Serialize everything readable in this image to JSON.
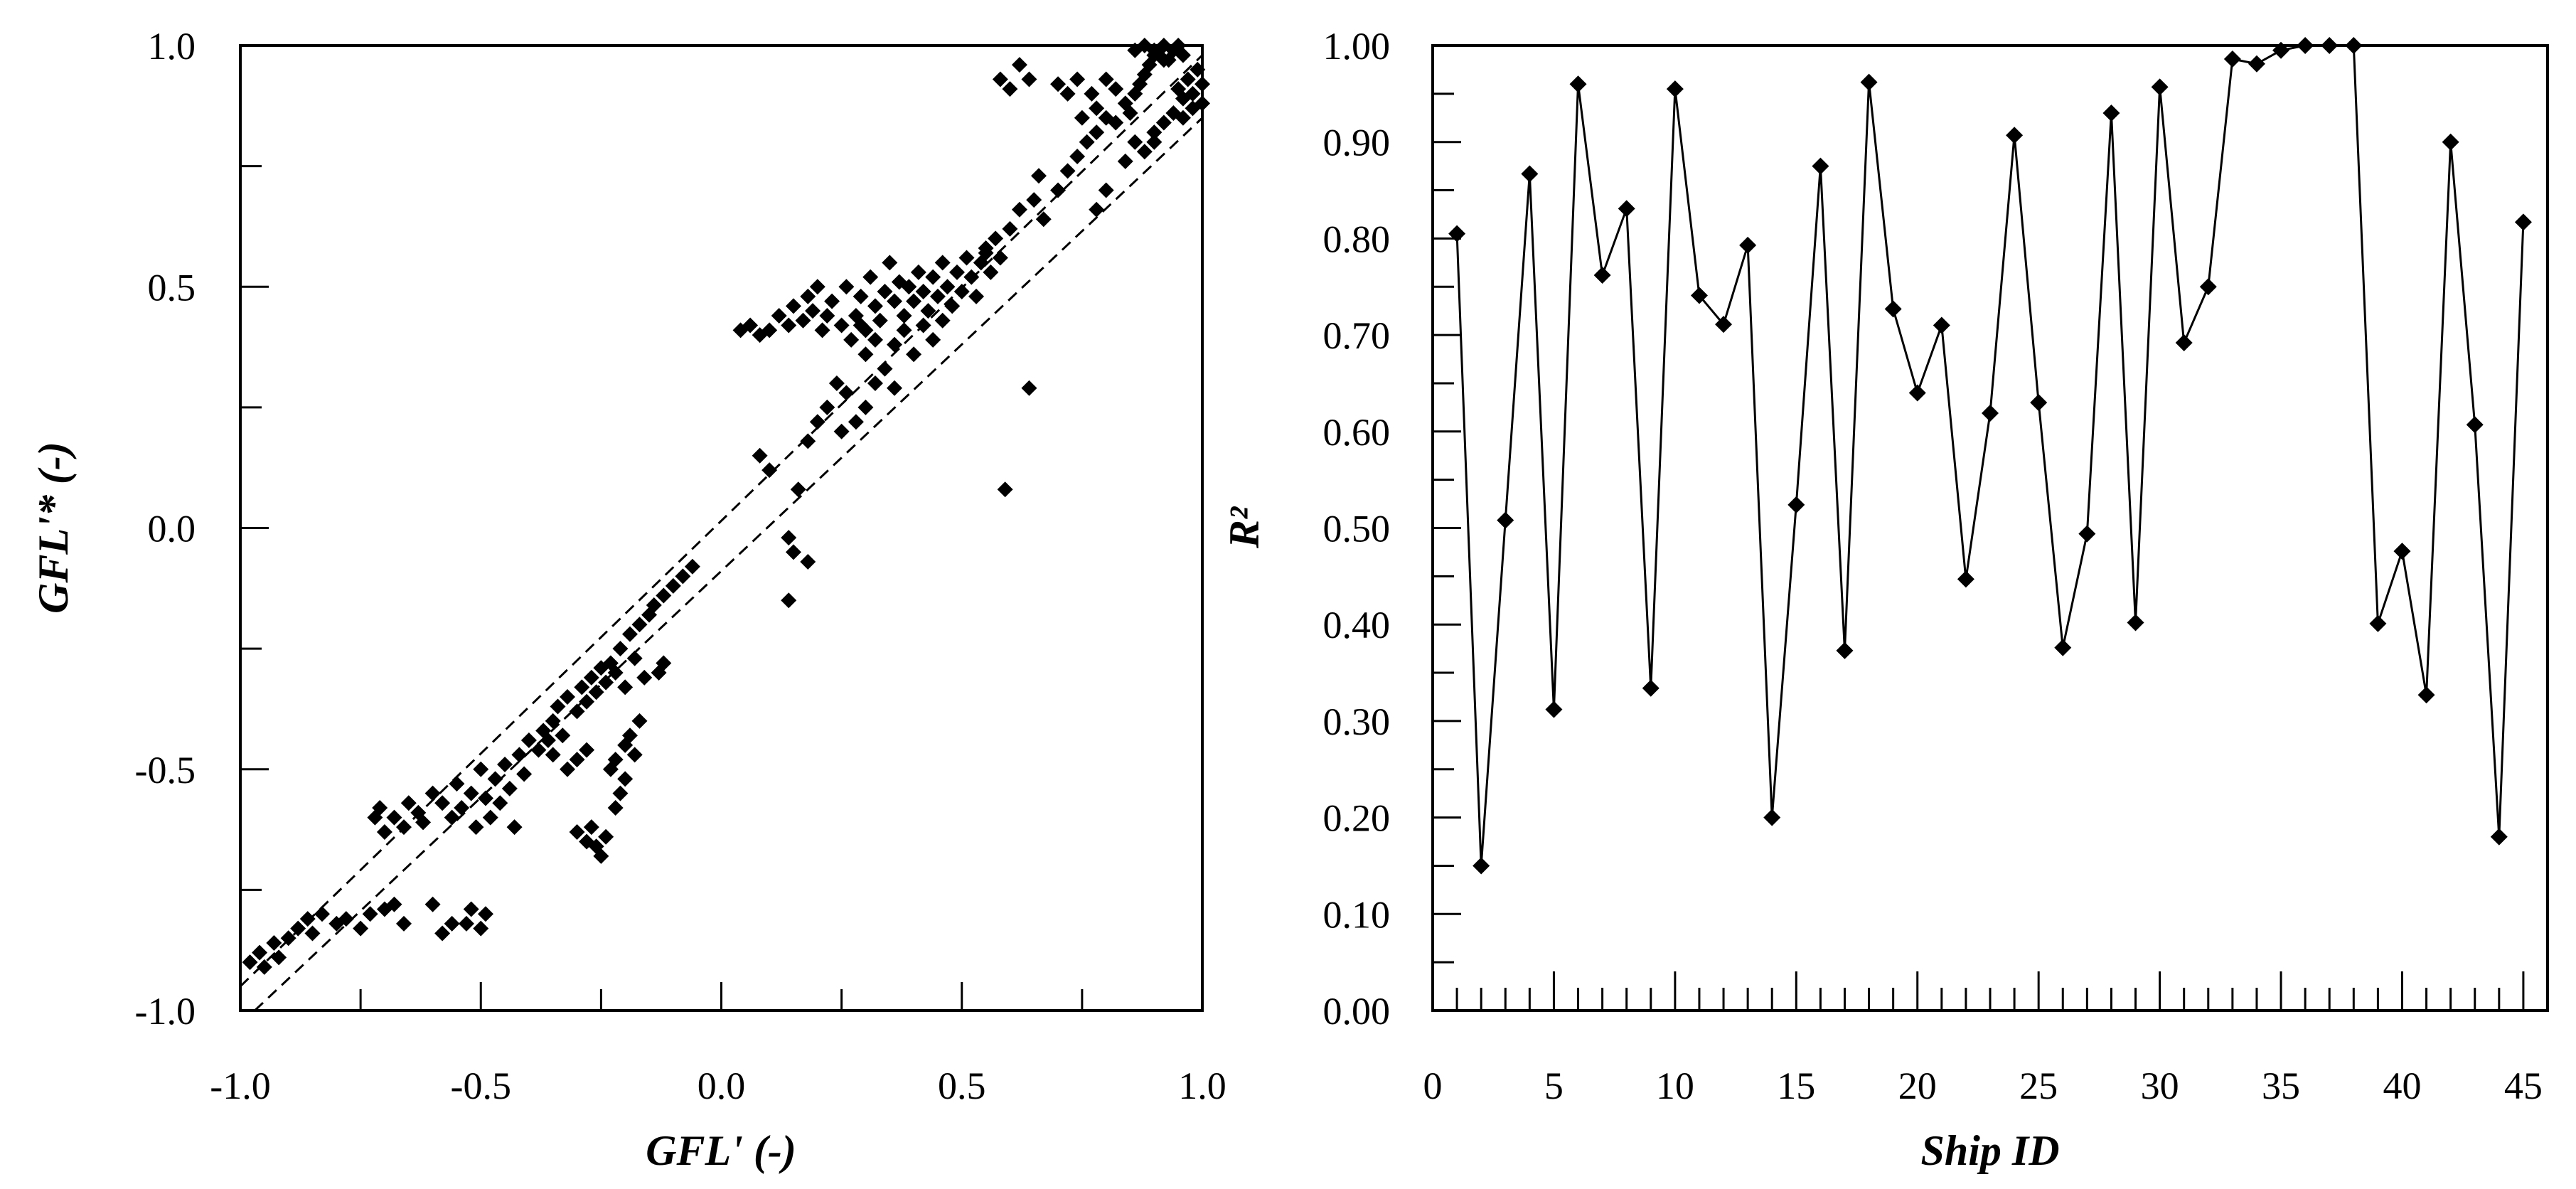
{
  "chart_data": [
    {
      "type": "scatter",
      "xlabel": "GFL' (-)",
      "ylabel": "GFL'* (-)",
      "xlim": [
        -1.0,
        1.0
      ],
      "ylim": [
        -1.0,
        1.0
      ],
      "xticks": [
        "-1.0",
        "-0.5",
        "0.0",
        "0.5",
        "1.0"
      ],
      "yticks": [
        "-1.0",
        "-0.5",
        "0.0",
        "0.5",
        "1.0"
      ],
      "grid": false,
      "marker": "diamond",
      "reference_lines": [
        {
          "style": "dashed",
          "x": [
            -1.0,
            1.0
          ],
          "y": [
            -0.95,
            0.98
          ]
        },
        {
          "style": "dashed",
          "x": [
            -0.97,
            1.0
          ],
          "y": [
            -1.0,
            0.85
          ]
        }
      ],
      "points": [
        [
          -0.98,
          -0.9
        ],
        [
          -0.96,
          -0.88
        ],
        [
          -0.95,
          -0.91
        ],
        [
          -0.93,
          -0.86
        ],
        [
          -0.92,
          -0.89
        ],
        [
          -0.9,
          -0.85
        ],
        [
          -0.88,
          -0.83
        ],
        [
          -0.86,
          -0.81
        ],
        [
          -0.85,
          -0.84
        ],
        [
          -0.83,
          -0.8
        ],
        [
          -0.8,
          -0.82
        ],
        [
          -0.78,
          -0.81
        ],
        [
          -0.75,
          -0.83
        ],
        [
          -0.73,
          -0.8
        ],
        [
          -0.7,
          -0.79
        ],
        [
          -0.68,
          -0.78
        ],
        [
          -0.66,
          -0.82
        ],
        [
          -0.6,
          -0.78
        ],
        [
          -0.58,
          -0.84
        ],
        [
          -0.56,
          -0.82
        ],
        [
          -0.52,
          -0.79
        ],
        [
          -0.5,
          -0.83
        ],
        [
          -0.49,
          -0.8
        ],
        [
          -0.53,
          -0.82
        ],
        [
          -0.72,
          -0.6
        ],
        [
          -0.7,
          -0.63
        ],
        [
          -0.71,
          -0.58
        ],
        [
          -0.68,
          -0.6
        ],
        [
          -0.66,
          -0.62
        ],
        [
          -0.65,
          -0.57
        ],
        [
          -0.63,
          -0.59
        ],
        [
          -0.62,
          -0.61
        ],
        [
          -0.6,
          -0.55
        ],
        [
          -0.58,
          -0.57
        ],
        [
          -0.56,
          -0.6
        ],
        [
          -0.55,
          -0.53
        ],
        [
          -0.54,
          -0.58
        ],
        [
          -0.52,
          -0.55
        ],
        [
          -0.51,
          -0.62
        ],
        [
          -0.5,
          -0.5
        ],
        [
          -0.49,
          -0.56
        ],
        [
          -0.48,
          -0.6
        ],
        [
          -0.47,
          -0.52
        ],
        [
          -0.46,
          -0.57
        ],
        [
          -0.45,
          -0.49
        ],
        [
          -0.44,
          -0.54
        ],
        [
          -0.43,
          -0.62
        ],
        [
          -0.42,
          -0.47
        ],
        [
          -0.41,
          -0.51
        ],
        [
          -0.4,
          -0.44
        ],
        [
          -0.38,
          -0.46
        ],
        [
          -0.37,
          -0.42
        ],
        [
          -0.35,
          -0.4
        ],
        [
          -0.34,
          -0.37
        ],
        [
          -0.33,
          -0.43
        ],
        [
          -0.32,
          -0.35
        ],
        [
          -0.3,
          -0.38
        ],
        [
          -0.29,
          -0.33
        ],
        [
          -0.28,
          -0.36
        ],
        [
          -0.27,
          -0.31
        ],
        [
          -0.26,
          -0.34
        ],
        [
          -0.25,
          -0.29
        ],
        [
          -0.24,
          -0.32
        ],
        [
          -0.23,
          -0.28
        ],
        [
          -0.22,
          -0.3
        ],
        [
          -0.21,
          -0.25
        ],
        [
          -0.2,
          -0.33
        ],
        [
          -0.19,
          -0.22
        ],
        [
          -0.18,
          -0.27
        ],
        [
          -0.17,
          -0.2
        ],
        [
          -0.16,
          -0.31
        ],
        [
          -0.15,
          -0.18
        ],
        [
          -0.14,
          -0.16
        ],
        [
          -0.12,
          -0.14
        ],
        [
          -0.1,
          -0.12
        ],
        [
          -0.08,
          -0.1
        ],
        [
          -0.06,
          -0.08
        ],
        [
          -0.3,
          -0.63
        ],
        [
          -0.28,
          -0.65
        ],
        [
          -0.27,
          -0.62
        ],
        [
          -0.26,
          -0.66
        ],
        [
          -0.25,
          -0.68
        ],
        [
          -0.24,
          -0.64
        ],
        [
          -0.23,
          -0.5
        ],
        [
          -0.22,
          -0.48
        ],
        [
          -0.2,
          -0.45
        ],
        [
          -0.19,
          -0.43
        ],
        [
          -0.18,
          -0.47
        ],
        [
          -0.17,
          -0.4
        ],
        [
          -0.22,
          -0.58
        ],
        [
          -0.21,
          -0.55
        ],
        [
          -0.2,
          -0.52
        ],
        [
          -0.12,
          -0.28
        ],
        [
          -0.13,
          -0.3
        ],
        [
          -0.3,
          -0.48
        ],
        [
          -0.28,
          -0.46
        ],
        [
          -0.32,
          -0.5
        ],
        [
          -0.35,
          -0.47
        ],
        [
          -0.36,
          -0.44
        ],
        [
          0.08,
          0.15
        ],
        [
          0.1,
          0.12
        ],
        [
          0.14,
          -0.02
        ],
        [
          0.15,
          -0.05
        ],
        [
          0.18,
          -0.07
        ],
        [
          0.14,
          -0.15
        ],
        [
          0.16,
          0.08
        ],
        [
          0.18,
          0.18
        ],
        [
          0.2,
          0.22
        ],
        [
          0.22,
          0.25
        ],
        [
          0.24,
          0.3
        ],
        [
          0.26,
          0.28
        ],
        [
          0.25,
          0.2
        ],
        [
          0.28,
          0.22
        ],
        [
          0.3,
          0.25
        ],
        [
          0.32,
          0.3
        ],
        [
          0.34,
          0.33
        ],
        [
          0.36,
          0.29
        ],
        [
          0.04,
          0.41
        ],
        [
          0.06,
          0.42
        ],
        [
          0.08,
          0.4
        ],
        [
          0.1,
          0.41
        ],
        [
          0.12,
          0.44
        ],
        [
          0.14,
          0.42
        ],
        [
          0.15,
          0.46
        ],
        [
          0.17,
          0.43
        ],
        [
          0.18,
          0.48
        ],
        [
          0.19,
          0.45
        ],
        [
          0.2,
          0.5
        ],
        [
          0.21,
          0.41
        ],
        [
          0.22,
          0.44
        ],
        [
          0.23,
          0.47
        ],
        [
          0.25,
          0.42
        ],
        [
          0.26,
          0.5
        ],
        [
          0.27,
          0.39
        ],
        [
          0.28,
          0.44
        ],
        [
          0.29,
          0.48
        ],
        [
          0.3,
          0.41
        ],
        [
          0.31,
          0.52
        ],
        [
          0.32,
          0.46
        ],
        [
          0.33,
          0.43
        ],
        [
          0.34,
          0.49
        ],
        [
          0.35,
          0.55
        ],
        [
          0.36,
          0.47
        ],
        [
          0.37,
          0.51
        ],
        [
          0.38,
          0.44
        ],
        [
          0.39,
          0.5
        ],
        [
          0.4,
          0.47
        ],
        [
          0.41,
          0.53
        ],
        [
          0.42,
          0.49
        ],
        [
          0.43,
          0.45
        ],
        [
          0.44,
          0.52
        ],
        [
          0.45,
          0.48
        ],
        [
          0.46,
          0.55
        ],
        [
          0.47,
          0.5
        ],
        [
          0.48,
          0.46
        ],
        [
          0.49,
          0.53
        ],
        [
          0.5,
          0.49
        ],
        [
          0.51,
          0.56
        ],
        [
          0.52,
          0.52
        ],
        [
          0.53,
          0.48
        ],
        [
          0.54,
          0.55
        ],
        [
          0.55,
          0.57
        ],
        [
          0.56,
          0.53
        ],
        [
          0.57,
          0.6
        ],
        [
          0.58,
          0.56
        ],
        [
          0.36,
          0.38
        ],
        [
          0.38,
          0.41
        ],
        [
          0.4,
          0.36
        ],
        [
          0.42,
          0.42
        ],
        [
          0.44,
          0.39
        ],
        [
          0.46,
          0.43
        ],
        [
          0.3,
          0.36
        ],
        [
          0.32,
          0.39
        ],
        [
          0.29,
          0.42
        ],
        [
          0.64,
          0.29
        ],
        [
          0.59,
          0.08
        ],
        [
          0.55,
          0.58
        ],
        [
          0.6,
          0.62
        ],
        [
          0.62,
          0.66
        ],
        [
          0.65,
          0.68
        ],
        [
          0.67,
          0.64
        ],
        [
          0.66,
          0.73
        ],
        [
          0.7,
          0.7
        ],
        [
          0.72,
          0.74
        ],
        [
          0.74,
          0.77
        ],
        [
          0.76,
          0.8
        ],
        [
          0.78,
          0.82
        ],
        [
          0.8,
          0.85
        ],
        [
          0.82,
          0.84
        ],
        [
          0.84,
          0.88
        ],
        [
          0.85,
          0.86
        ],
        [
          0.86,
          0.9
        ],
        [
          0.87,
          0.92
        ],
        [
          0.88,
          0.94
        ],
        [
          0.89,
          0.96
        ],
        [
          0.9,
          0.98
        ],
        [
          0.91,
          0.99
        ],
        [
          0.92,
          1.0
        ],
        [
          0.93,
          0.97
        ],
        [
          0.94,
          0.99
        ],
        [
          0.95,
          1.0
        ],
        [
          0.96,
          0.98
        ],
        [
          0.86,
          0.99
        ],
        [
          0.88,
          1.0
        ],
        [
          0.9,
          0.99
        ],
        [
          0.92,
          0.97
        ],
        [
          0.58,
          0.93
        ],
        [
          0.6,
          0.91
        ],
        [
          0.62,
          0.96
        ],
        [
          0.64,
          0.93
        ],
        [
          0.7,
          0.92
        ],
        [
          0.72,
          0.9
        ],
        [
          0.74,
          0.93
        ],
        [
          0.77,
          0.9
        ],
        [
          0.8,
          0.93
        ],
        [
          0.82,
          0.91
        ],
        [
          0.75,
          0.85
        ],
        [
          0.78,
          0.87
        ],
        [
          0.95,
          0.91
        ],
        [
          0.96,
          0.89
        ],
        [
          0.97,
          0.93
        ],
        [
          0.98,
          0.9
        ],
        [
          0.99,
          0.95
        ],
        [
          1.0,
          0.92
        ],
        [
          0.9,
          0.82
        ],
        [
          0.92,
          0.84
        ],
        [
          0.94,
          0.86
        ],
        [
          0.96,
          0.85
        ],
        [
          0.98,
          0.87
        ],
        [
          1.0,
          0.88
        ],
        [
          0.88,
          0.78
        ],
        [
          0.86,
          0.8
        ],
        [
          0.84,
          0.76
        ],
        [
          0.9,
          0.8
        ],
        [
          0.8,
          0.7
        ],
        [
          0.78,
          0.66
        ]
      ]
    },
    {
      "type": "line",
      "xlabel": "Ship ID",
      "ylabel": "R²",
      "xlim": [
        0,
        46
      ],
      "ylim": [
        0.0,
        1.0
      ],
      "xticks": [
        "0",
        "5",
        "10",
        "15",
        "20",
        "25",
        "30",
        "35",
        "40",
        "45"
      ],
      "yticks": [
        "0.00",
        "0.10",
        "0.20",
        "0.30",
        "0.40",
        "0.50",
        "0.60",
        "0.70",
        "0.80",
        "0.90",
        "1.00"
      ],
      "grid": false,
      "marker": "diamond",
      "x": [
        1,
        2,
        3,
        4,
        5,
        6,
        7,
        8,
        9,
        10,
        11,
        12,
        13,
        14,
        15,
        16,
        17,
        18,
        19,
        20,
        21,
        22,
        23,
        24,
        25,
        26,
        27,
        28,
        29,
        30,
        31,
        32,
        33,
        34,
        35,
        36,
        37,
        38,
        39,
        40,
        41,
        42,
        43,
        44,
        45
      ],
      "y": [
        0.805,
        0.15,
        0.508,
        0.867,
        0.312,
        0.96,
        0.762,
        0.831,
        0.334,
        0.955,
        0.741,
        0.711,
        0.793,
        0.2,
        0.524,
        0.875,
        0.373,
        0.962,
        0.727,
        0.64,
        0.71,
        0.447,
        0.619,
        0.907,
        0.63,
        0.376,
        0.494,
        0.93,
        0.402,
        0.957,
        0.692,
        0.75,
        0.986,
        0.981,
        0.995,
        1.0,
        1.0,
        1.0,
        0.401,
        0.476,
        0.327,
        0.9,
        0.607,
        0.18,
        0.817
      ]
    }
  ]
}
